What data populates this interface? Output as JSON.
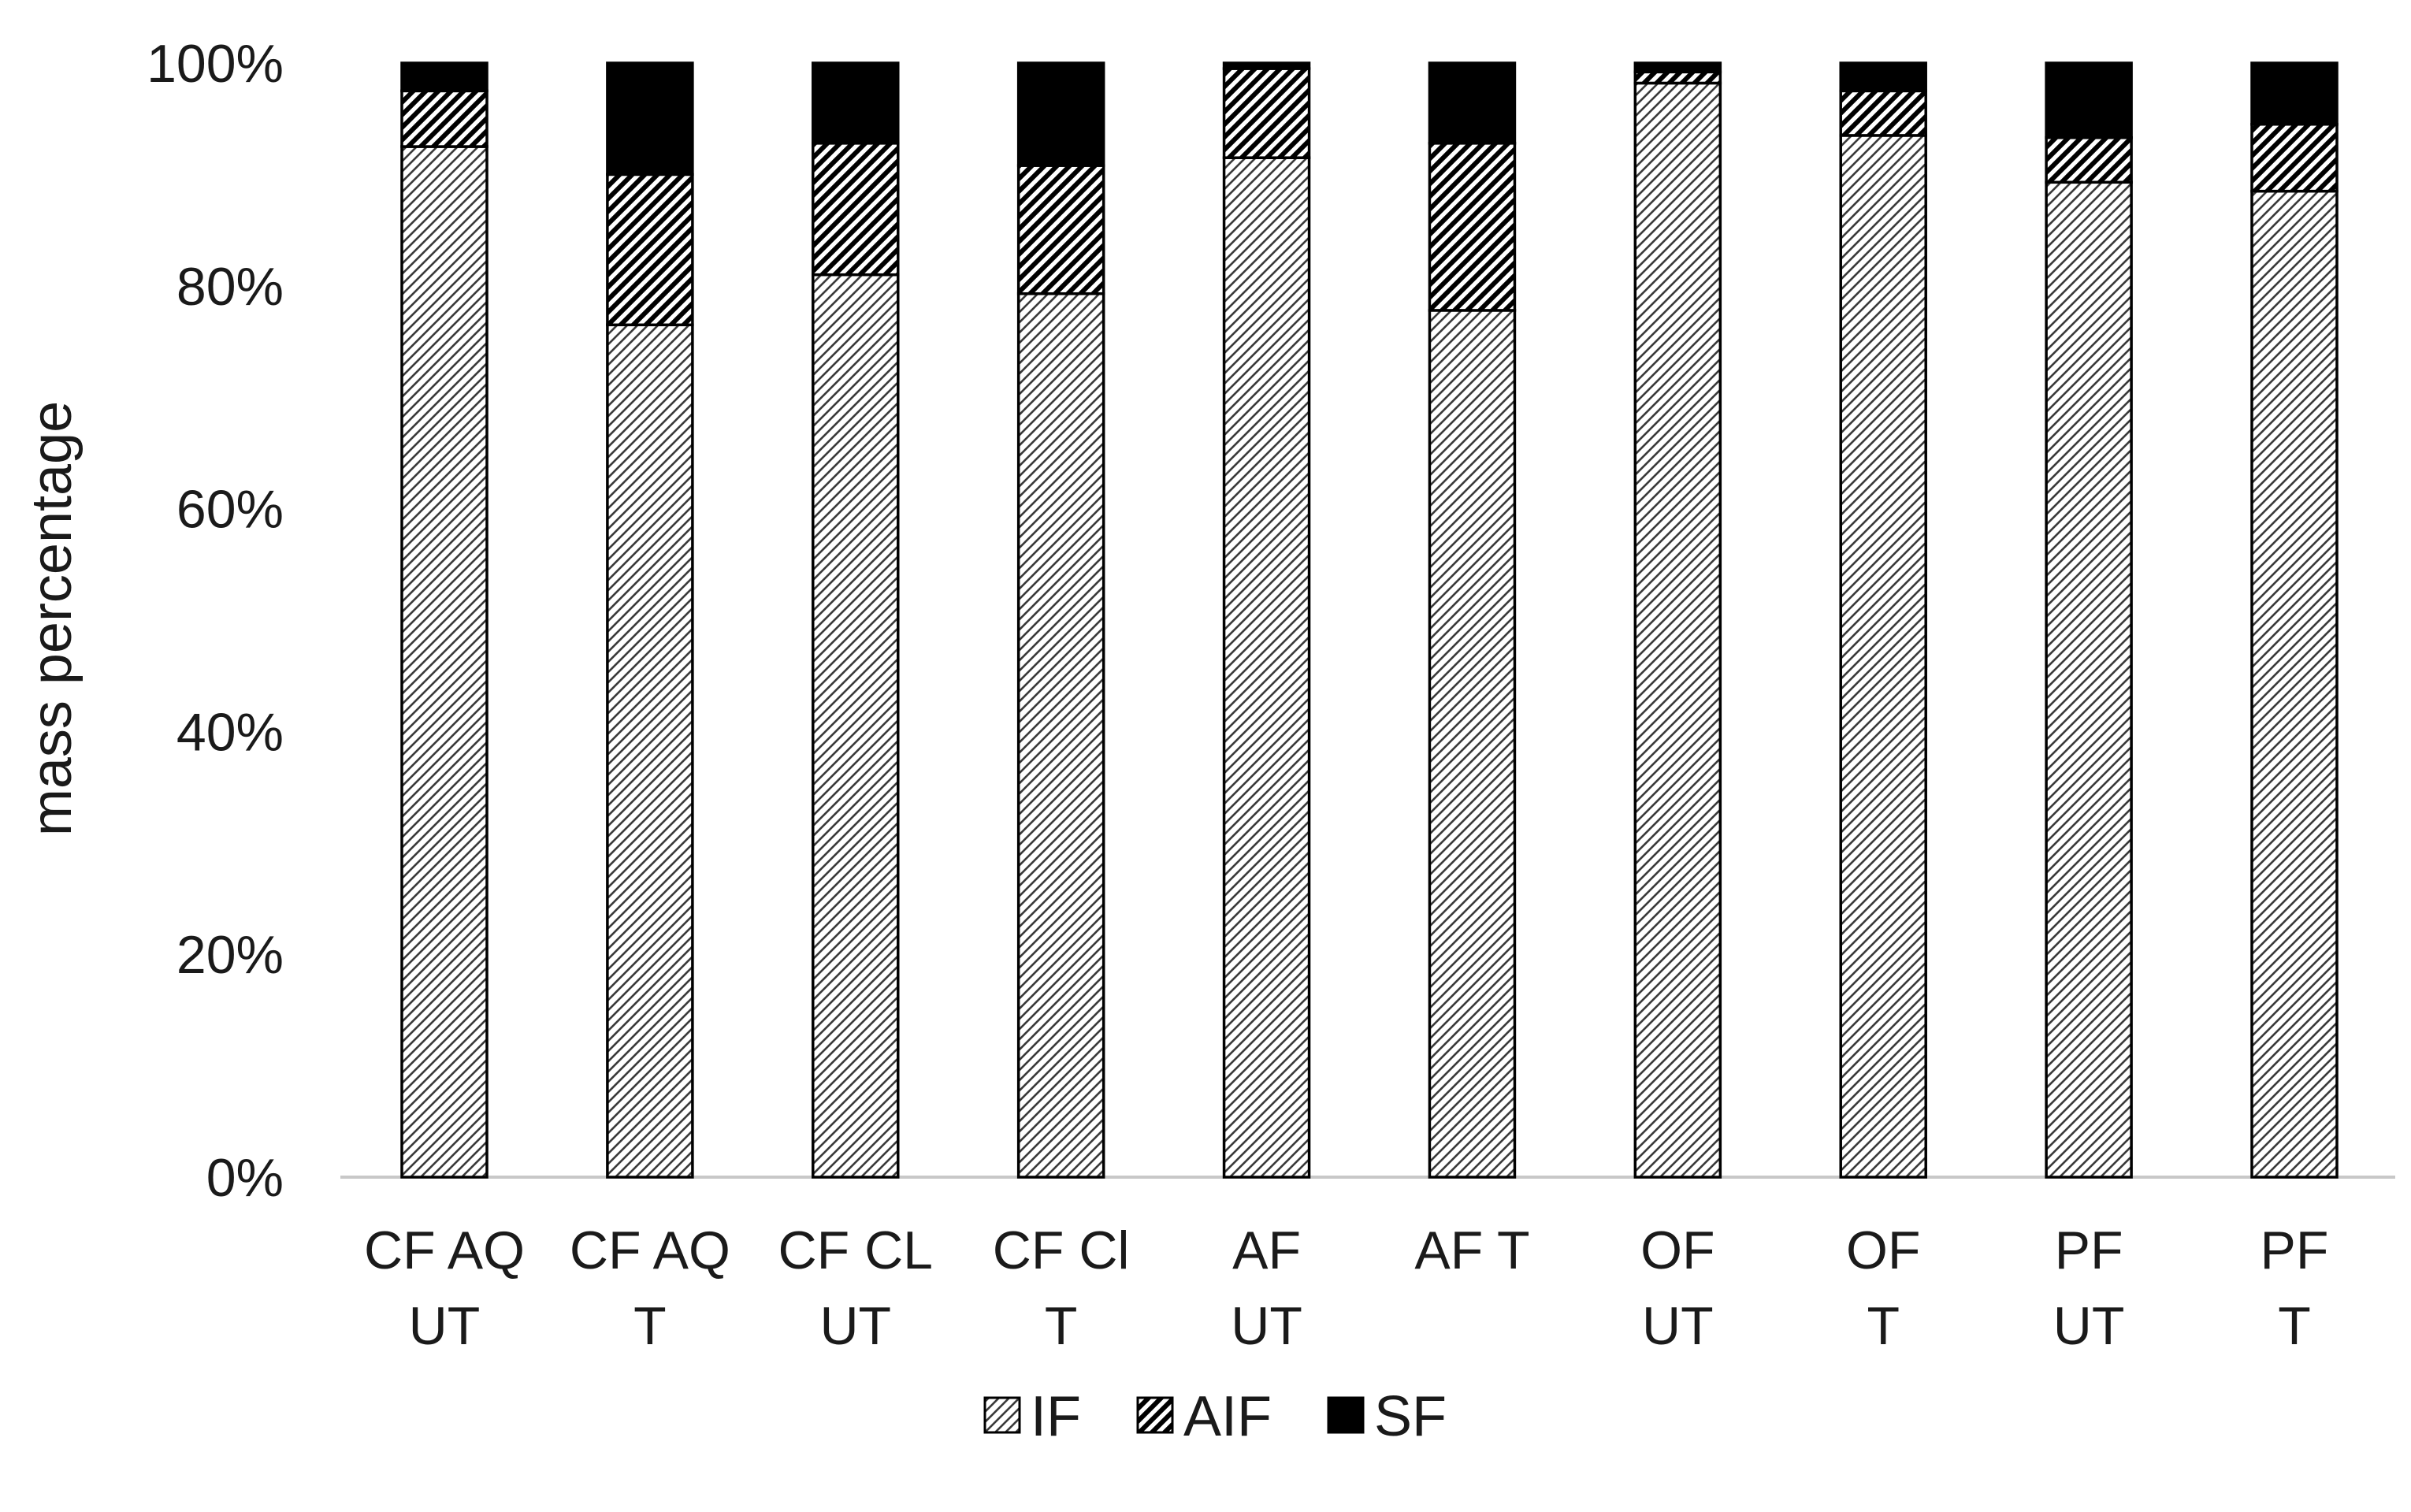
{
  "chart_data": {
    "type": "bar",
    "stacked": true,
    "percent_stacked": true,
    "title": "",
    "xlabel": "",
    "ylabel": "mass percentage",
    "ylim": [
      0,
      100
    ],
    "y_ticks": [
      "0%",
      "20%",
      "40%",
      "60%",
      "80%",
      "100%"
    ],
    "grid": false,
    "legend_position": "bottom",
    "categories": [
      [
        "CF AQ",
        "UT"
      ],
      [
        "CF AQ",
        "T"
      ],
      [
        "CF CL",
        "UT"
      ],
      [
        "CF Cl",
        "T"
      ],
      [
        "AF",
        "UT"
      ],
      [
        "AF T",
        ""
      ],
      [
        "OF",
        "UT"
      ],
      [
        "OF",
        "T"
      ],
      [
        "PF",
        "UT"
      ],
      [
        "PF",
        "T"
      ]
    ],
    "series": [
      {
        "name": "IF",
        "pattern": "light-diagonal-hatch",
        "values": [
          92.5,
          76.5,
          81,
          79.3,
          91.5,
          77.8,
          98.2,
          93.5,
          89.3,
          88.5
        ]
      },
      {
        "name": "AIF",
        "pattern": "dark-diagonal-hatch",
        "values": [
          5,
          13.5,
          11.8,
          11.5,
          8,
          15,
          1,
          4,
          4,
          6
        ]
      },
      {
        "name": "SF",
        "pattern": "solid",
        "values": [
          2.5,
          10,
          7.2,
          9.2,
          0.5,
          7.2,
          0.8,
          2.5,
          6.7,
          5.5
        ]
      }
    ],
    "colors": {
      "bar_stroke": "#000000",
      "light_hatch": "#3a3a3a",
      "dark_hatch": "#000000",
      "solid": "#000000",
      "axis": "#c8c8c8",
      "text": "#1a1a1a"
    }
  }
}
